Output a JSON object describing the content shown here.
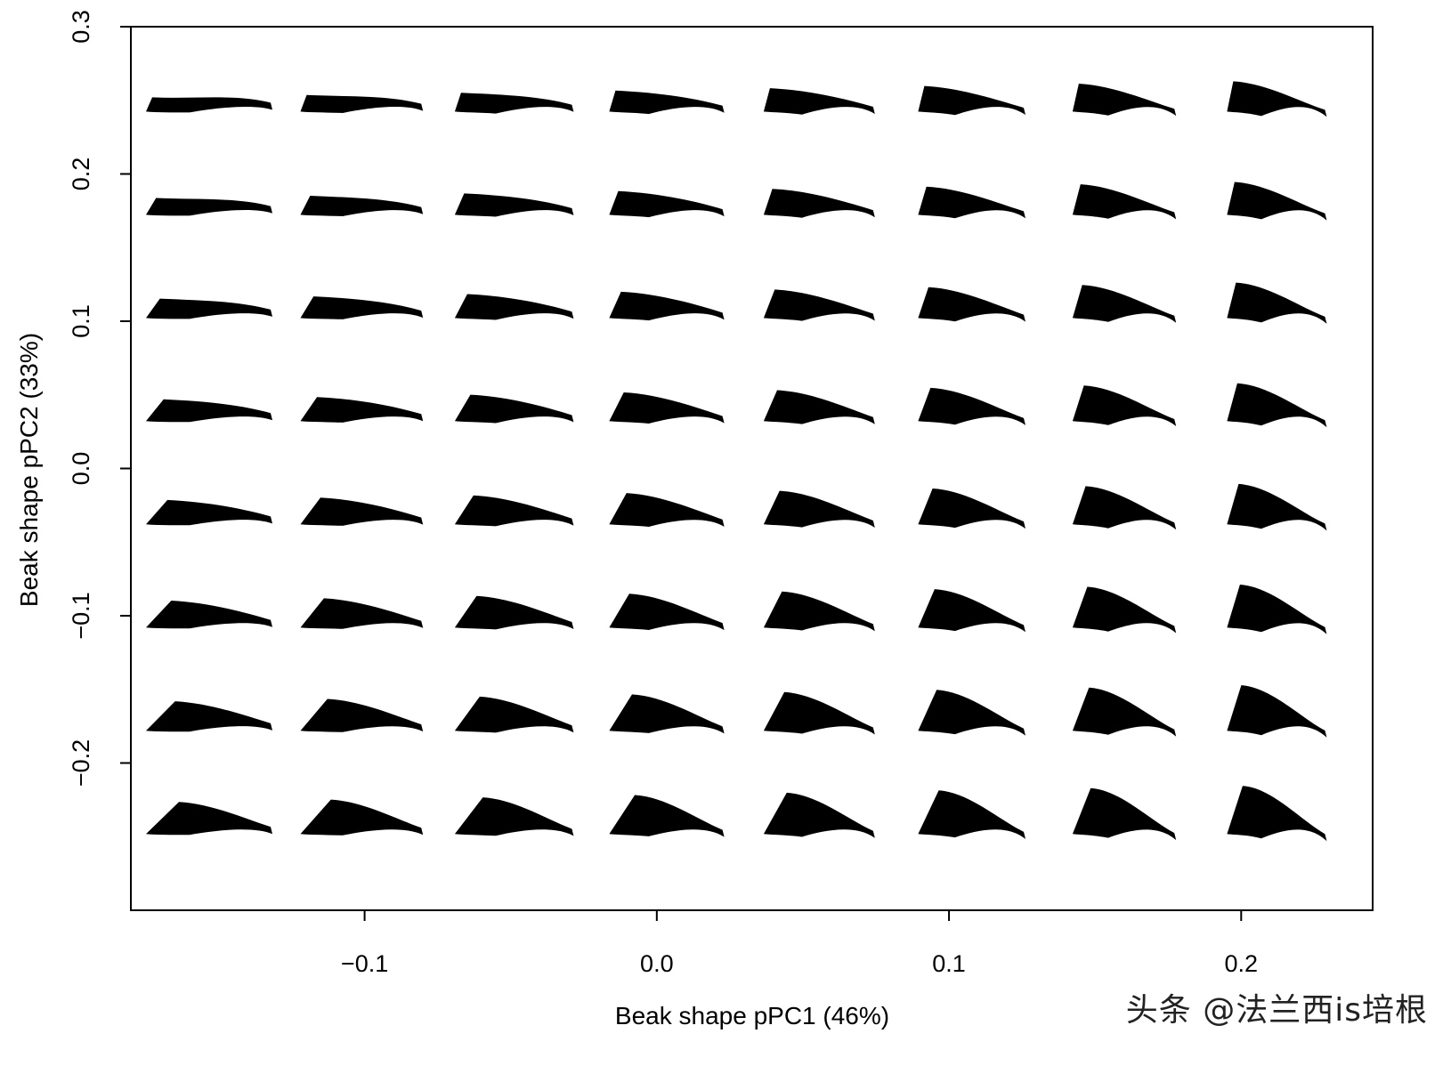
{
  "chart_data": {
    "type": "scatter",
    "description_kind": "morphospace grid",
    "xlabel": "Beak shape pPC1 (46%)",
    "ylabel": "Beak shape pPC2 (33%)",
    "xlim": [
      -0.18,
      0.245
    ],
    "ylim": [
      -0.3,
      0.3
    ],
    "x_ticks": [
      -0.1,
      0.0,
      0.1,
      0.2
    ],
    "x_tick_labels": [
      "−0.1",
      "0.0",
      "0.1",
      "0.2"
    ],
    "y_ticks": [
      -0.2,
      -0.1,
      0.0,
      0.1,
      0.2,
      0.3
    ],
    "y_tick_labels": [
      "−0.2",
      "−0.1",
      "0.0",
      "0.1",
      "0.2",
      "0.3"
    ],
    "grid": false,
    "legend": "none",
    "mark": "beak silhouette",
    "mark_color": "#000000",
    "grid_x": [
      -0.1535,
      -0.1013,
      -0.0491,
      0.0031,
      0.0553,
      0.1075,
      0.1597,
      0.2119
    ],
    "grid_y": [
      0.2496,
      0.1797,
      0.1098,
      0.0399,
      -0.03,
      -0.0999,
      -0.1698,
      -0.2397
    ]
  },
  "watermark": "头条 @法兰西is培根"
}
